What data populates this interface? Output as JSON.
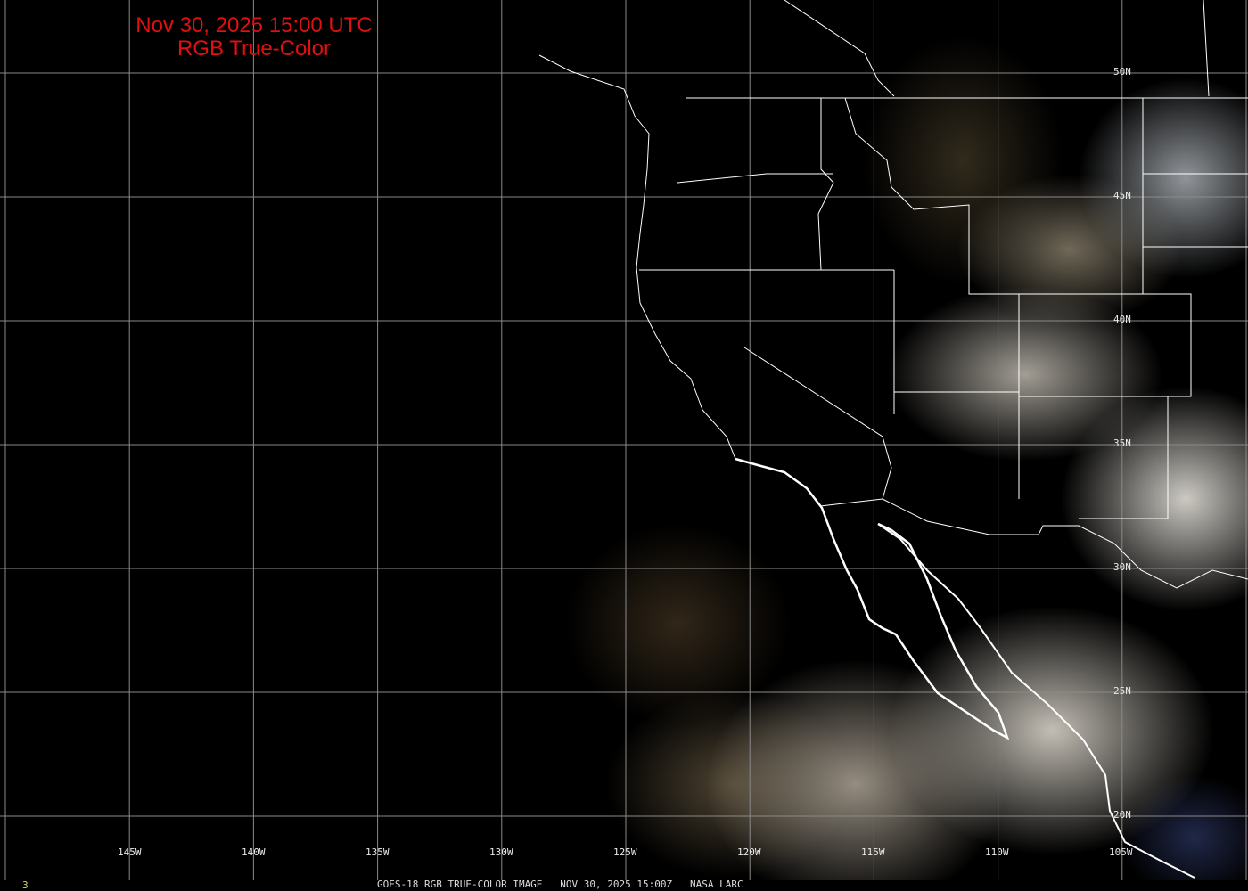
{
  "title": {
    "line1": "Nov 30, 2025 15:00 UTC",
    "line2": "RGB True-Color",
    "color": "#e01010"
  },
  "longitude_labels": [
    "145W",
    "140W",
    "135W",
    "130W",
    "125W",
    "120W",
    "115W",
    "110W",
    "105W"
  ],
  "latitude_labels": [
    "50N",
    "45N",
    "40N",
    "35N",
    "30N",
    "25N",
    "20N"
  ],
  "footer": {
    "frame": "3",
    "caption": "GOES-18 RGB TRUE-COLOR IMAGE   NOV 30, 2025 15:00Z   NASA LARC"
  }
}
